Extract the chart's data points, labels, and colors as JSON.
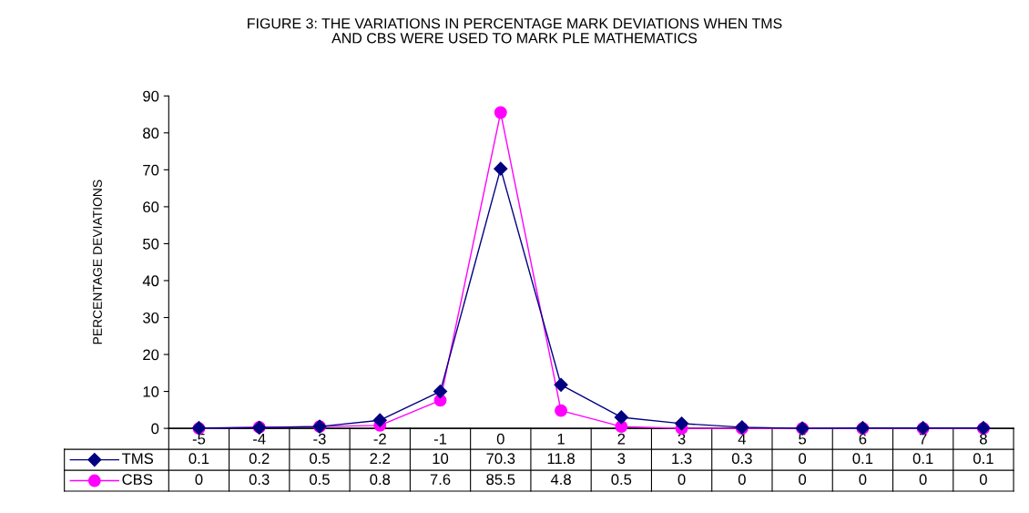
{
  "chart_data": {
    "type": "line",
    "title": "FIGURE 3: THE VARIATIONS IN PERCENTAGE MARK DEVIATIONS WHEN TMS\nAND CBS WERE USED TO MARK PLE MATHEMATICS",
    "ylabel": "PERCENTAGE DEVIATIONS",
    "categories": [
      "-5",
      "-4",
      "-3",
      "-2",
      "-1",
      "0",
      "1",
      "2",
      "3",
      "4",
      "5",
      "6",
      "7",
      "8"
    ],
    "series": [
      {
        "name": "TMS",
        "color": "#000080",
        "marker": "diamond",
        "values": [
          0.1,
          0.2,
          0.5,
          2.2,
          10,
          70.3,
          11.8,
          3,
          1.3,
          0.3,
          0,
          0.1,
          0.1,
          0.1
        ]
      },
      {
        "name": "CBS",
        "color": "#ff00ff",
        "marker": "circle",
        "values": [
          0,
          0.3,
          0.5,
          0.8,
          7.6,
          85.5,
          4.8,
          0.5,
          0,
          0,
          0,
          0,
          0,
          0
        ]
      }
    ],
    "ylim": [
      0,
      90
    ],
    "yticks": [
      0,
      10,
      20,
      30,
      40,
      50,
      60,
      70,
      80,
      90
    ],
    "grid": false,
    "legend": "bottom",
    "data_labels": true,
    "line_style": "solid"
  }
}
